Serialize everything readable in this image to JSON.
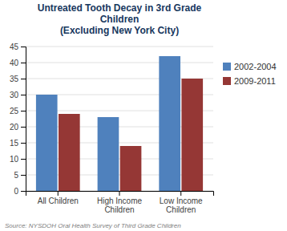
{
  "chart_data": {
    "type": "bar",
    "title": "Untreated Tooth Decay in 3rd Grade\nChildren\n(Excluding New York City)",
    "categories": [
      "All Children",
      "High Income\nChildren",
      "Low Income\nChildren"
    ],
    "series": [
      {
        "name": "2002-2004",
        "color": "#4F81BD",
        "values": [
          30,
          23,
          42
        ]
      },
      {
        "name": "2009-2011",
        "color": "#953735",
        "values": [
          24,
          14,
          35
        ]
      }
    ],
    "ylim": [
      0,
      45
    ],
    "yticks": [
      0,
      5,
      10,
      15,
      20,
      25,
      30,
      35,
      40,
      45
    ],
    "grid": true,
    "legend": "right",
    "annotations": [
      "Source: NYSDOH Oral Health Survey of Third Grade Children"
    ]
  }
}
